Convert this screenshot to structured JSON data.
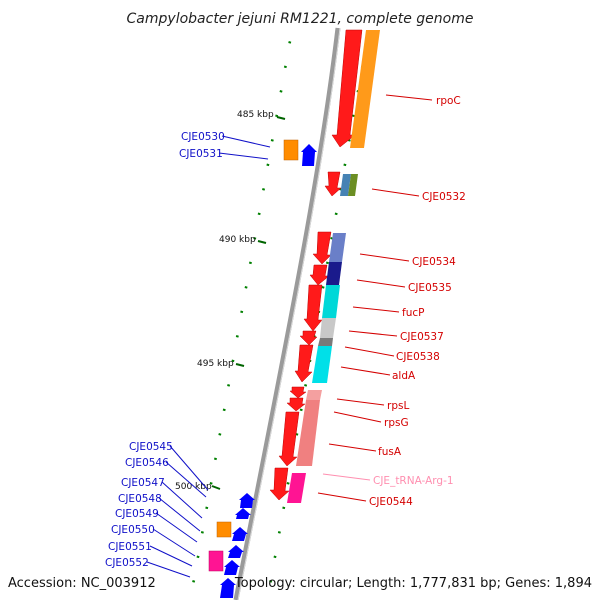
{
  "header": {
    "title": "Campylobacter jejuni RM1221, complete genome"
  },
  "footer": {
    "accession": "Accession: NC_003912",
    "summary": "Topology: circular; Length: 1,777,831 bp; Genes: 1,894"
  },
  "scale_ticks": [
    {
      "label": "485 kbp"
    },
    {
      "label": "490 kbp"
    },
    {
      "label": "495 kbp"
    },
    {
      "label": "500 kbp"
    }
  ],
  "labels_right": [
    {
      "text": "rpoC",
      "color": "#d40000"
    },
    {
      "text": "CJE0532",
      "color": "#d40000"
    },
    {
      "text": "CJE0534",
      "color": "#d40000"
    },
    {
      "text": "CJE0535",
      "color": "#d40000"
    },
    {
      "text": "fucP",
      "color": "#d40000"
    },
    {
      "text": "CJE0537",
      "color": "#d40000"
    },
    {
      "text": "CJE0538",
      "color": "#d40000"
    },
    {
      "text": "aldA",
      "color": "#d40000"
    },
    {
      "text": "rpsL",
      "color": "#d40000"
    },
    {
      "text": "rpsG",
      "color": "#d40000"
    },
    {
      "text": "fusA",
      "color": "#d40000"
    },
    {
      "text": "CJE_tRNA-Arg-1",
      "color": "#ff8fb0"
    },
    {
      "text": "CJE0544",
      "color": "#d40000"
    }
  ],
  "labels_left": [
    {
      "text": "CJE0530",
      "color": "#1010c8"
    },
    {
      "text": "CJE0531",
      "color": "#1010c8"
    },
    {
      "text": "CJE0545",
      "color": "#1010c8"
    },
    {
      "text": "CJE0546",
      "color": "#1010c8"
    },
    {
      "text": "CJE0547",
      "color": "#1010c8"
    },
    {
      "text": "CJE0548",
      "color": "#1010c8"
    },
    {
      "text": "CJE0549",
      "color": "#1010c8"
    },
    {
      "text": "CJE0550",
      "color": "#1010c8"
    },
    {
      "text": "CJE0551",
      "color": "#1010c8"
    },
    {
      "text": "CJE0552",
      "color": "#1010c8"
    }
  ],
  "colors": {
    "backbone": "#8a8a8a",
    "forward_gene": "#ff0000",
    "reverse_gene": "#0000ff",
    "tick": "#006400",
    "cog_orange": "#ff8c00",
    "cog_cyan": "#00e5e5",
    "cog_pink": "#ff1493",
    "cog_salmon": "#f08080",
    "cog_grey": "#c0c0c0"
  }
}
